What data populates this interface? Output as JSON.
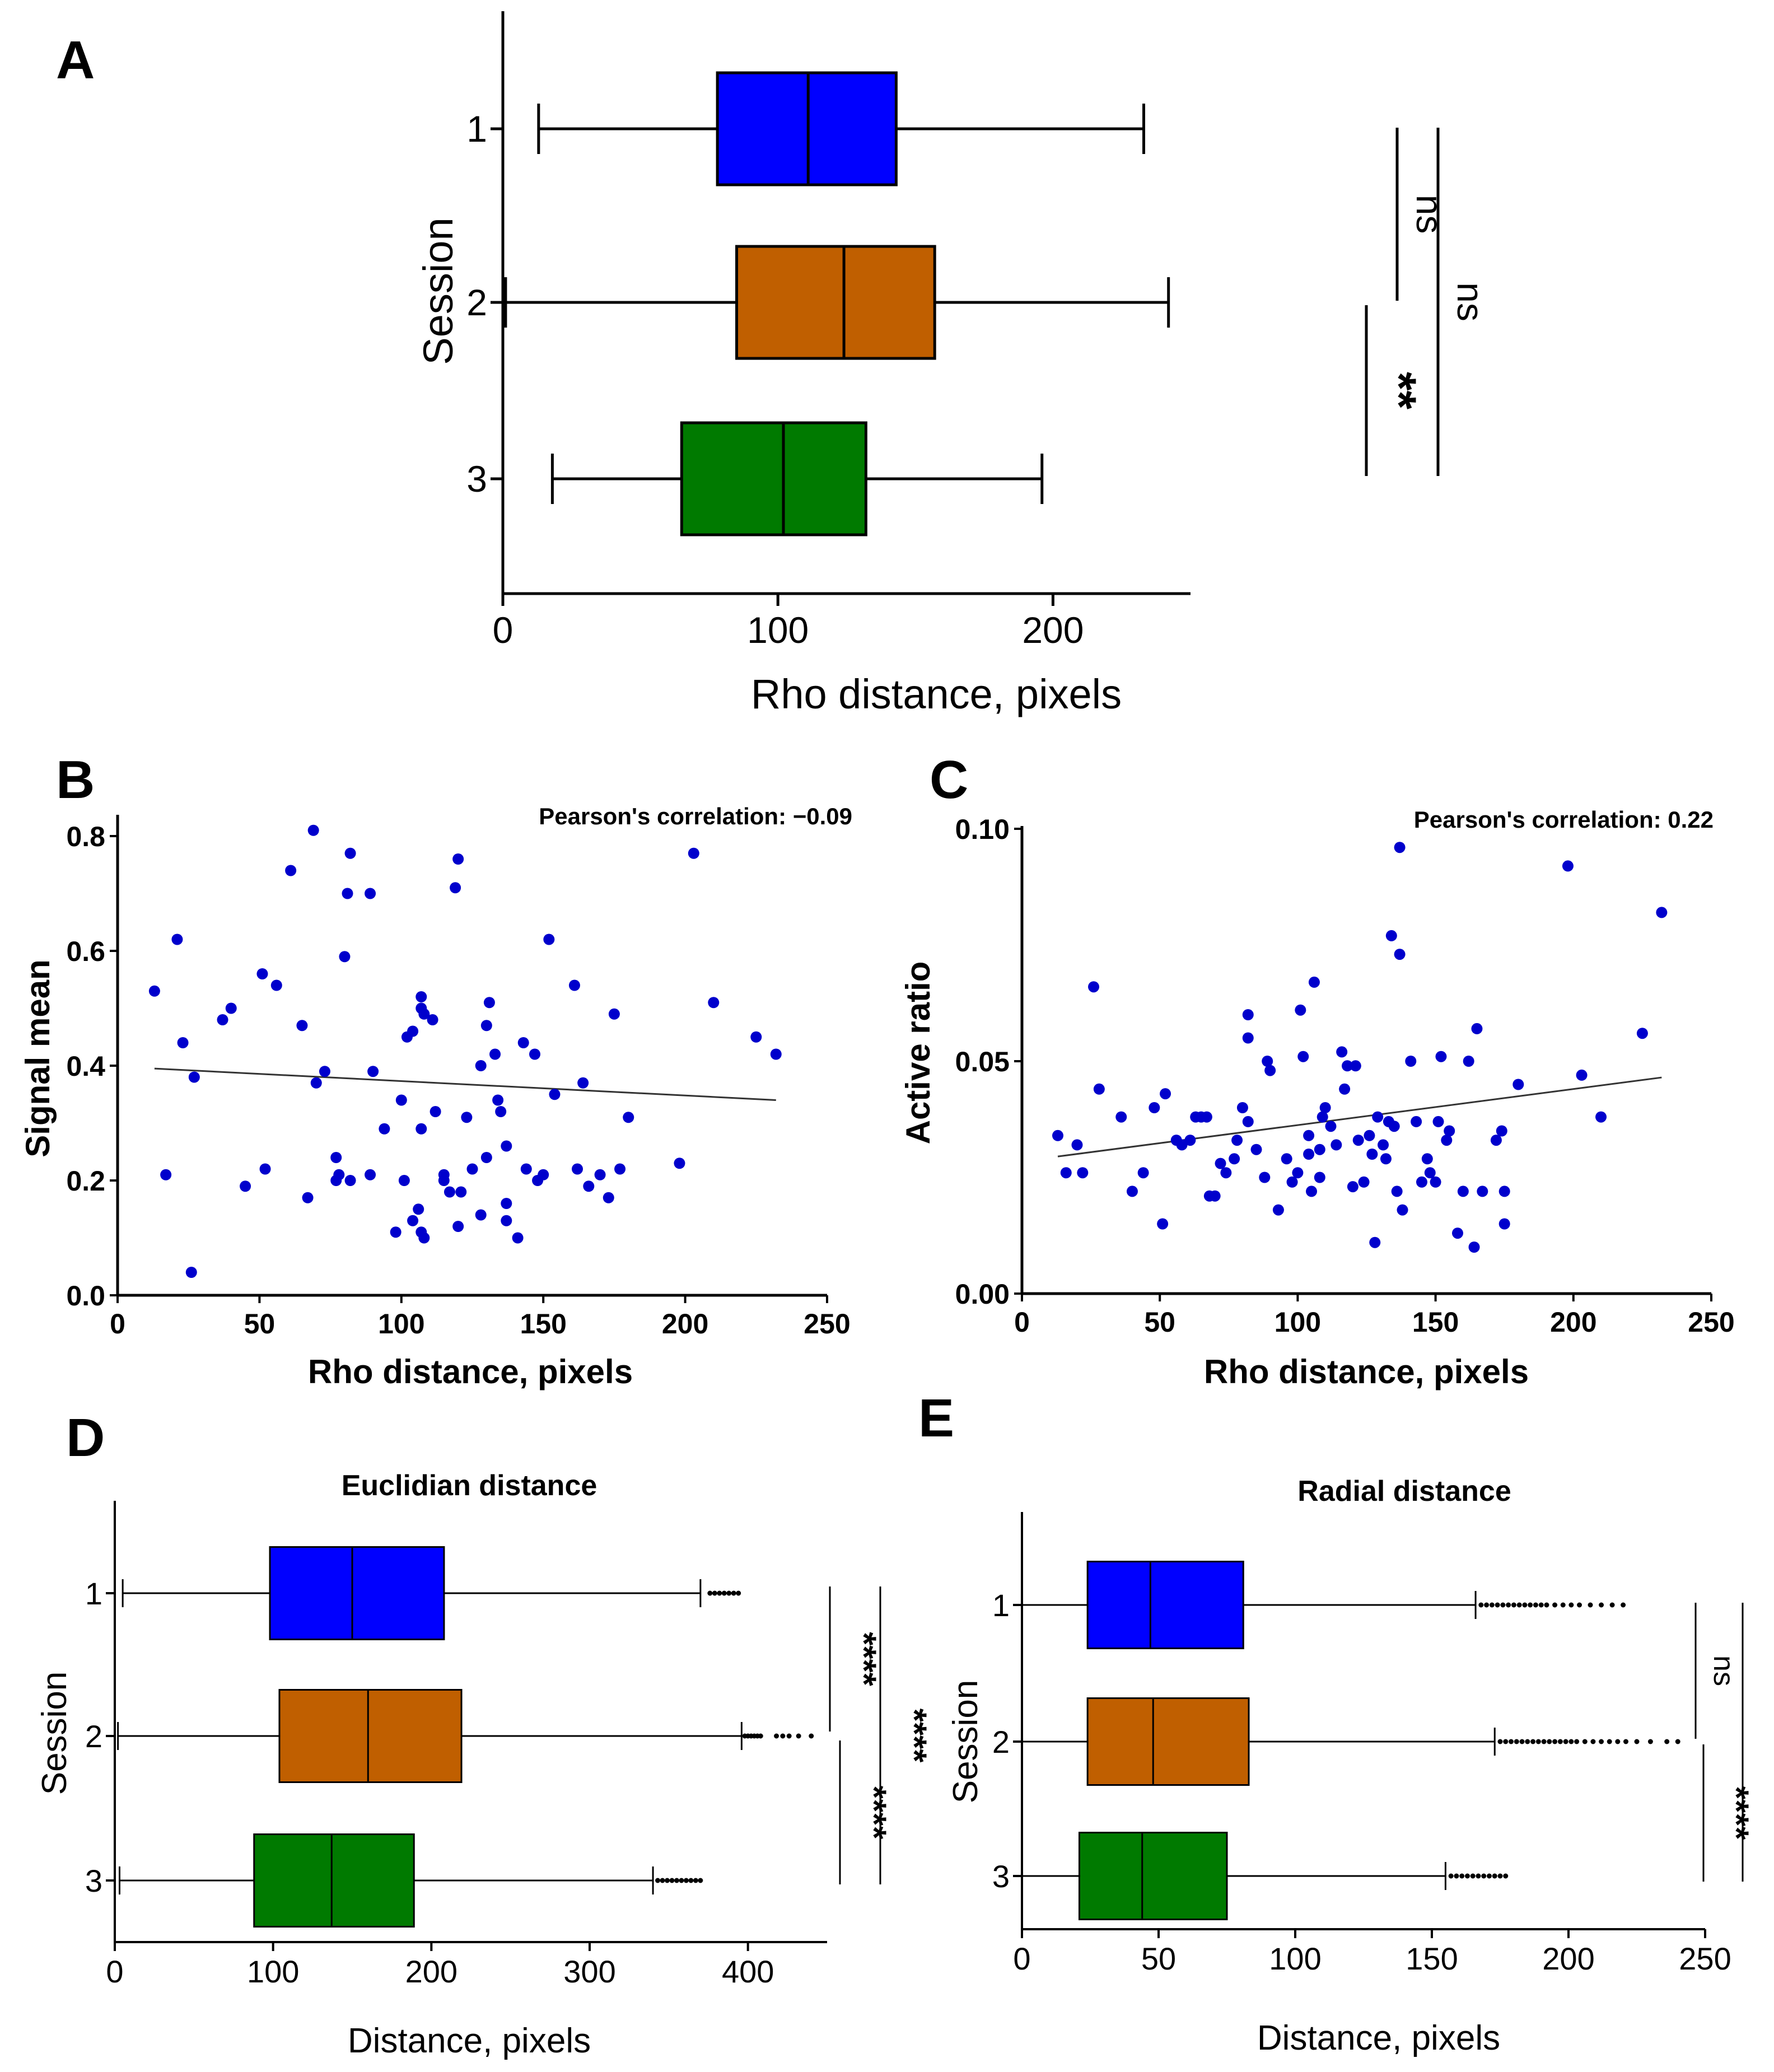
{
  "colors": {
    "session1": "#0000ff",
    "session2": "#c05f00",
    "session3": "#007a00",
    "point": "#0000cc",
    "axis": "#000000"
  },
  "chart_data": [
    {
      "panel": "A",
      "type": "boxplot",
      "orientation": "horizontal",
      "title": "",
      "xlabel": "Rho distance, pixels",
      "ylabel": "Session",
      "xlim": [
        0,
        250
      ],
      "xticks": [
        0,
        100,
        200
      ],
      "categories": [
        "1",
        "2",
        "3"
      ],
      "boxes": [
        {
          "session": "1",
          "min": 13,
          "q1": 78,
          "median": 111,
          "q3": 143,
          "max": 233
        },
        {
          "session": "2",
          "min": 1,
          "q1": 85,
          "median": 124,
          "q3": 157,
          "max": 242
        },
        {
          "session": "3",
          "min": 18,
          "q1": 65,
          "median": 102,
          "q3": 132,
          "max": 196
        }
      ],
      "significance": [
        {
          "pair": [
            "1",
            "2"
          ],
          "label": "ns"
        },
        {
          "pair": [
            "2",
            "3"
          ],
          "label": "**"
        },
        {
          "pair": [
            "1",
            "3"
          ],
          "label": "ns"
        }
      ]
    },
    {
      "panel": "B",
      "type": "scatter",
      "xlabel": "Rho distance, pixels",
      "ylabel": "Signal mean",
      "xlim": [
        0,
        250
      ],
      "ylim": [
        0,
        0.88
      ],
      "xticks": [
        0,
        50,
        100,
        150,
        200,
        250
      ],
      "yticks": [
        "0.0",
        "0.2",
        "0.4",
        "0.6",
        "0.8"
      ],
      "annotation": "Pearson's correlation: −0.09",
      "trendline": {
        "x": [
          13,
          232
        ],
        "y": [
          0.395,
          0.34
        ]
      },
      "points": [
        [
          13,
          0.53
        ],
        [
          17,
          0.21
        ],
        [
          21,
          0.62
        ],
        [
          23,
          0.44
        ],
        [
          26,
          0.04
        ],
        [
          27,
          0.38
        ],
        [
          37,
          0.48
        ],
        [
          40,
          0.5
        ],
        [
          45,
          0.19
        ],
        [
          51,
          0.56
        ],
        [
          52,
          0.22
        ],
        [
          56,
          0.54
        ],
        [
          61,
          0.74
        ],
        [
          65,
          0.47
        ],
        [
          67,
          0.17
        ],
        [
          69,
          0.81
        ],
        [
          70,
          0.37
        ],
        [
          73,
          0.39
        ],
        [
          77,
          0.24
        ],
        [
          77,
          0.2
        ],
        [
          78,
          0.21
        ],
        [
          80,
          0.59
        ],
        [
          81,
          0.7
        ],
        [
          82,
          0.77
        ],
        [
          82,
          0.2
        ],
        [
          89,
          0.7
        ],
        [
          89,
          0.21
        ],
        [
          90,
          0.39
        ],
        [
          94,
          0.29
        ],
        [
          98,
          0.11
        ],
        [
          100,
          0.34
        ],
        [
          101,
          0.2
        ],
        [
          102,
          0.45
        ],
        [
          104,
          0.46
        ],
        [
          104,
          0.13
        ],
        [
          106,
          0.15
        ],
        [
          107,
          0.11
        ],
        [
          107,
          0.29
        ],
        [
          107,
          0.52
        ],
        [
          107,
          0.5
        ],
        [
          108,
          0.1
        ],
        [
          108,
          0.49
        ],
        [
          111,
          0.48
        ],
        [
          112,
          0.32
        ],
        [
          115,
          0.2
        ],
        [
          115,
          0.21
        ],
        [
          117,
          0.18
        ],
        [
          119,
          0.71
        ],
        [
          120,
          0.76
        ],
        [
          120,
          0.12
        ],
        [
          121,
          0.18
        ],
        [
          123,
          0.31
        ],
        [
          125,
          0.22
        ],
        [
          128,
          0.4
        ],
        [
          128,
          0.14
        ],
        [
          130,
          0.24
        ],
        [
          130,
          0.47
        ],
        [
          131,
          0.51
        ],
        [
          133,
          0.42
        ],
        [
          134,
          0.34
        ],
        [
          135,
          0.32
        ],
        [
          137,
          0.16
        ],
        [
          137,
          0.26
        ],
        [
          137,
          0.13
        ],
        [
          141,
          0.1
        ],
        [
          143,
          0.44
        ],
        [
          144,
          0.22
        ],
        [
          147,
          0.42
        ],
        [
          148,
          0.2
        ],
        [
          150,
          0.21
        ],
        [
          152,
          0.62
        ],
        [
          154,
          0.35
        ],
        [
          161,
          0.54
        ],
        [
          162,
          0.22
        ],
        [
          164,
          0.37
        ],
        [
          166,
          0.19
        ],
        [
          170,
          0.21
        ],
        [
          173,
          0.17
        ],
        [
          175,
          0.49
        ],
        [
          177,
          0.22
        ],
        [
          180,
          0.31
        ],
        [
          198,
          0.23
        ],
        [
          203,
          0.77
        ],
        [
          210,
          0.51
        ],
        [
          225,
          0.45
        ],
        [
          232,
          0.42
        ]
      ]
    },
    {
      "panel": "C",
      "type": "scatter",
      "xlabel": "Rho distance, pixels",
      "ylabel": "Active ratio",
      "xlim": [
        0,
        250
      ],
      "ylim": [
        0,
        0.1
      ],
      "xticks": [
        0,
        50,
        100,
        150,
        200,
        250
      ],
      "yticks": [
        "0.00",
        "0.05",
        "0.10"
      ],
      "annotation": "Pearson's correlation: 0.22",
      "trendline": {
        "x": [
          13,
          232
        ],
        "y": [
          0.0295,
          0.0465
        ]
      },
      "points": [
        [
          13,
          0.034
        ],
        [
          16,
          0.026
        ],
        [
          20,
          0.032
        ],
        [
          22,
          0.026
        ],
        [
          26,
          0.066
        ],
        [
          28,
          0.044
        ],
        [
          36,
          0.038
        ],
        [
          40,
          0.022
        ],
        [
          44,
          0.026
        ],
        [
          48,
          0.04
        ],
        [
          51,
          0.015
        ],
        [
          52,
          0.043
        ],
        [
          56,
          0.033
        ],
        [
          58,
          0.032
        ],
        [
          61,
          0.033
        ],
        [
          63,
          0.038
        ],
        [
          65,
          0.038
        ],
        [
          67,
          0.038
        ],
        [
          68,
          0.021
        ],
        [
          70,
          0.021
        ],
        [
          72,
          0.028
        ],
        [
          74,
          0.026
        ],
        [
          77,
          0.029
        ],
        [
          78,
          0.033
        ],
        [
          80,
          0.04
        ],
        [
          82,
          0.055
        ],
        [
          82,
          0.06
        ],
        [
          82,
          0.037
        ],
        [
          85,
          0.031
        ],
        [
          88,
          0.025
        ],
        [
          89,
          0.05
        ],
        [
          90,
          0.048
        ],
        [
          93,
          0.018
        ],
        [
          96,
          0.029
        ],
        [
          98,
          0.024
        ],
        [
          100,
          0.026
        ],
        [
          101,
          0.061
        ],
        [
          102,
          0.051
        ],
        [
          104,
          0.03
        ],
        [
          104,
          0.034
        ],
        [
          105,
          0.022
        ],
        [
          106,
          0.067
        ],
        [
          108,
          0.025
        ],
        [
          108,
          0.031
        ],
        [
          109,
          0.038
        ],
        [
          110,
          0.04
        ],
        [
          112,
          0.036
        ],
        [
          114,
          0.032
        ],
        [
          116,
          0.052
        ],
        [
          117,
          0.044
        ],
        [
          118,
          0.049
        ],
        [
          120,
          0.023
        ],
        [
          121,
          0.049
        ],
        [
          122,
          0.033
        ],
        [
          124,
          0.024
        ],
        [
          126,
          0.034
        ],
        [
          127,
          0.03
        ],
        [
          128,
          0.011
        ],
        [
          129,
          0.038
        ],
        [
          131,
          0.032
        ],
        [
          132,
          0.029
        ],
        [
          133,
          0.037
        ],
        [
          134,
          0.077
        ],
        [
          135,
          0.036
        ],
        [
          136,
          0.022
        ],
        [
          137,
          0.073
        ],
        [
          138,
          0.018
        ],
        [
          141,
          0.05
        ],
        [
          143,
          0.037
        ],
        [
          145,
          0.024
        ],
        [
          147,
          0.029
        ],
        [
          148,
          0.026
        ],
        [
          150,
          0.024
        ],
        [
          151,
          0.037
        ],
        [
          152,
          0.051
        ],
        [
          154,
          0.033
        ],
        [
          155,
          0.035
        ],
        [
          158,
          0.013
        ],
        [
          160,
          0.022
        ],
        [
          162,
          0.05
        ],
        [
          164,
          0.01
        ],
        [
          165,
          0.057
        ],
        [
          167,
          0.022
        ],
        [
          172,
          0.033
        ],
        [
          174,
          0.035
        ],
        [
          175,
          0.015
        ],
        [
          175,
          0.022
        ],
        [
          180,
          0.045
        ],
        [
          137,
          0.096
        ],
        [
          198,
          0.092
        ],
        [
          203,
          0.047
        ],
        [
          210,
          0.038
        ],
        [
          225,
          0.056
        ],
        [
          232,
          0.082
        ]
      ]
    },
    {
      "panel": "D",
      "type": "boxplot",
      "orientation": "horizontal",
      "title": "Euclidian distance",
      "xlabel": "Distance, pixels",
      "ylabel": "Session",
      "xlim": [
        0,
        450
      ],
      "xticks": [
        0,
        100,
        200,
        300,
        400
      ],
      "categories": [
        "1",
        "2",
        "3"
      ],
      "boxes": [
        {
          "session": "1",
          "min": 5,
          "q1": 98,
          "median": 150,
          "q3": 208,
          "max": 370,
          "outliers": [
            376,
            379,
            382,
            385,
            388,
            391,
            394
          ]
        },
        {
          "session": "2",
          "min": 2,
          "q1": 104,
          "median": 160,
          "q3": 219,
          "max": 396,
          "outliers": [
            398,
            400,
            402,
            404,
            406,
            408,
            418,
            422,
            426,
            432,
            440
          ]
        },
        {
          "session": "3",
          "min": 3,
          "q1": 88,
          "median": 137,
          "q3": 189,
          "max": 340,
          "outliers": [
            343,
            346,
            349,
            352,
            355,
            358,
            361,
            364,
            367,
            370
          ]
        }
      ],
      "significance": [
        {
          "pair": [
            "1",
            "2"
          ],
          "label": "****"
        },
        {
          "pair": [
            "2",
            "3"
          ],
          "label": "****"
        },
        {
          "pair": [
            "1",
            "3"
          ],
          "label": "****"
        }
      ]
    },
    {
      "panel": "E",
      "type": "boxplot",
      "orientation": "horizontal",
      "title": "Radial distance",
      "xlabel": "Distance, pixels",
      "ylabel": "Session",
      "xlim": [
        0,
        250
      ],
      "xticks": [
        0,
        50,
        100,
        150,
        200,
        250
      ],
      "categories": [
        "1",
        "2",
        "3"
      ],
      "boxes": [
        {
          "session": "1",
          "min": 0,
          "q1": 24,
          "median": 47,
          "q3": 81,
          "max": 166,
          "outliers": [
            168,
            170,
            172,
            174,
            176,
            178,
            180,
            182,
            184,
            186,
            188,
            190,
            192,
            195,
            198,
            201,
            204,
            208,
            212,
            216,
            220
          ]
        },
        {
          "session": "2",
          "min": 0,
          "q1": 24,
          "median": 48,
          "q3": 83,
          "max": 173,
          "outliers": [
            175,
            177,
            179,
            181,
            183,
            185,
            187,
            189,
            191,
            193,
            195,
            197,
            199,
            201,
            203,
            206,
            209,
            212,
            215,
            218,
            221,
            225,
            230,
            236,
            240
          ]
        },
        {
          "session": "3",
          "min": 0,
          "q1": 21,
          "median": 44,
          "q3": 75,
          "max": 155,
          "outliers": [
            157,
            159,
            161,
            163,
            165,
            167,
            169,
            171,
            173,
            175,
            177
          ]
        }
      ],
      "significance": [
        {
          "pair": [
            "1",
            "2"
          ],
          "label": "ns"
        },
        {
          "pair": [
            "2",
            "3"
          ],
          "label": "****"
        },
        {
          "pair": [
            "1",
            "3"
          ],
          "label": "****"
        }
      ]
    }
  ]
}
